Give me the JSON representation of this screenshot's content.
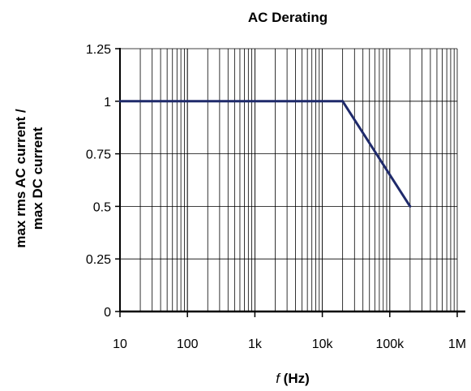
{
  "chart_data": {
    "type": "line",
    "title": "AC Derating",
    "xlabel_italic": "f",
    "xlabel_rest": " (Hz)",
    "ylabel_line1": "max rms AC current /",
    "ylabel_line2": "max  DC current",
    "x_scale": "log",
    "xlim": [
      10,
      1000000
    ],
    "ylim": [
      0,
      1.25
    ],
    "grid": true,
    "x_ticks": [
      10,
      100,
      1000,
      10000,
      100000,
      1000000
    ],
    "x_tick_labels": [
      "10",
      "100",
      "1k",
      "10k",
      "100k",
      "1M"
    ],
    "y_ticks": [
      0,
      0.25,
      0.5,
      0.75,
      1,
      1.25
    ],
    "y_tick_labels": [
      "0",
      "0.25",
      "0.5",
      "0.75",
      "1",
      "1.25"
    ],
    "series": [
      {
        "color": "#1f2a6b",
        "x": [
          10,
          20000,
          200000
        ],
        "y": [
          1,
          1,
          0.5
        ]
      }
    ]
  }
}
